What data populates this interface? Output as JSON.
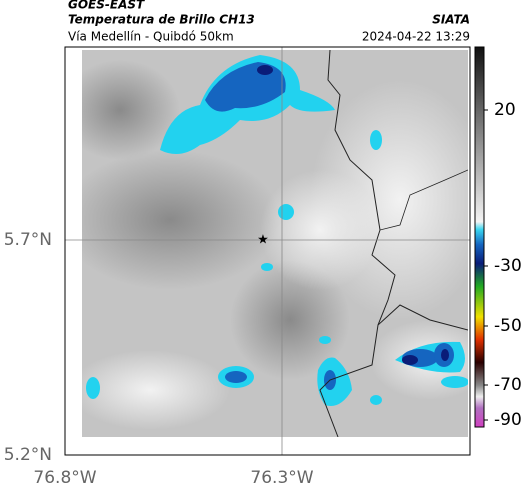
{
  "header": {
    "source": "GOES-EAST",
    "title": "Temperatura de Brillo CH13",
    "route": "Vía Medellín - Quibdó 50km",
    "agency": "SIATA",
    "timestamp": "2024-04-22 13:29"
  },
  "axes": {
    "lat_labels": [
      "5.7°N",
      "5.2°N"
    ],
    "lon_labels": [
      "76.8°W",
      "76.3°W"
    ]
  },
  "colorbar": {
    "ticks": [
      20,
      -30,
      -50,
      -70,
      -90
    ]
  }
}
